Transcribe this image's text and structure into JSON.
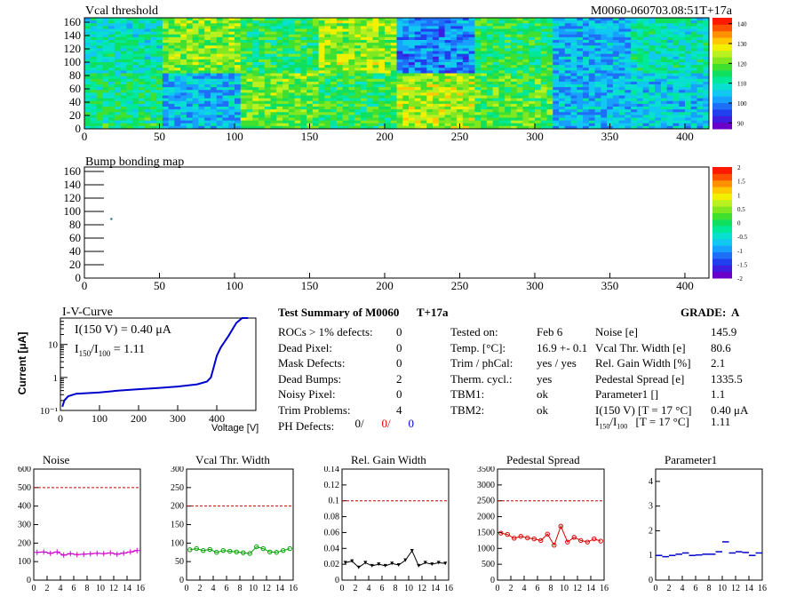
{
  "header": {
    "map_title": "Vcal threshold",
    "module_id": "M0060-060703.08:51T+17a",
    "bump_title": "Bump bonding map"
  },
  "maps": {
    "x_ticks": [
      0,
      50,
      100,
      150,
      200,
      250,
      300,
      350,
      400
    ],
    "y_ticks": [
      0,
      20,
      40,
      60,
      80,
      100,
      120,
      140,
      160
    ],
    "xlim": [
      0,
      416
    ],
    "ylim": [
      0,
      160
    ],
    "threshold_palette": {
      "ticks": [
        90,
        100,
        110,
        120,
        130,
        140
      ],
      "range": [
        87,
        143
      ]
    },
    "bump_palette": {
      "ticks": [
        "2",
        "1.5",
        "1",
        "0.5",
        "0",
        "-0.5",
        "-1",
        "-1.5",
        "-2"
      ]
    },
    "roc_levels_top": [
      110,
      121,
      115,
      123,
      100,
      115,
      104,
      110
    ],
    "roc_levels_bottom": [
      113,
      104,
      120,
      116,
      124,
      118,
      104,
      106
    ],
    "bump_point": {
      "x": 15,
      "y": 90
    }
  },
  "iv": {
    "title": "I-V-Curve",
    "ylabel": "Current [μA]",
    "xlabel": "Voltage [V]",
    "annotation_main": "I(150 V) = 0.40 μA",
    "ratio_prefix": "I",
    "ratio_sub1": "150",
    "ratio_sub2": "100",
    "ratio_value": "= 1.11",
    "x_ticks": [
      0,
      100,
      200,
      300,
      400
    ],
    "y_ticks": [
      "10⁻¹",
      "1",
      "10"
    ],
    "points": [
      [
        5,
        0.13
      ],
      [
        10,
        0.2
      ],
      [
        20,
        0.27
      ],
      [
        40,
        0.32
      ],
      [
        100,
        0.35
      ],
      [
        150,
        0.4
      ],
      [
        200,
        0.44
      ],
      [
        250,
        0.48
      ],
      [
        300,
        0.53
      ],
      [
        350,
        0.62
      ],
      [
        375,
        0.75
      ],
      [
        385,
        1.0
      ],
      [
        393,
        2.2
      ],
      [
        400,
        4.5
      ],
      [
        410,
        8
      ],
      [
        430,
        18
      ],
      [
        450,
        45
      ],
      [
        465,
        90
      ],
      [
        480,
        170
      ]
    ]
  },
  "summary": {
    "title": "Test Summary of M0060",
    "tag": "T+17a",
    "grade": "GRADE:  A",
    "left_rows": [
      {
        "label": "ROCs > 1% defects:",
        "value": "0"
      },
      {
        "label": "Dead Pixel:",
        "value": "0"
      },
      {
        "label": "Mask Defects:",
        "value": "0"
      },
      {
        "label": "Dead Bumps:",
        "value": "2"
      },
      {
        "label": "Noisy Pixel:",
        "value": "0"
      },
      {
        "label": "Trim Problems:",
        "value": "4"
      }
    ],
    "ph_label": "PH Defects:",
    "ph_values": [
      "0/",
      "0/",
      "0"
    ],
    "ph_colors": [
      "#000000",
      "#e00000",
      "#0000cc"
    ],
    "mid_rows": [
      {
        "label": "Tested on:",
        "value": "Feb 6"
      },
      {
        "label": "Temp. [°C]:",
        "value": "16.9 +- 0.1"
      },
      {
        "label": "Trim / phCal:",
        "value": "yes / yes"
      },
      {
        "label": "Therm. cycl.:",
        "value": "yes"
      },
      {
        "label": "TBM1:",
        "value": "ok"
      },
      {
        "label": "TBM2:",
        "value": "ok"
      }
    ],
    "right_rows": [
      {
        "label": "Noise [e]",
        "value": "145.9"
      },
      {
        "label": "Vcal Thr. Width [e]",
        "value": "80.6"
      },
      {
        "label": "Rel. Gain Width [%]",
        "value": "2.1"
      },
      {
        "label": "Pedestal Spread [e]",
        "value": "1335.5"
      },
      {
        "label": "Parameter1 []",
        "value": "1.1"
      },
      {
        "label": "I(150 V) [T = 17 °C]",
        "value": "0.40 μA"
      }
    ],
    "ratio_row": {
      "sub1": "150",
      "sub2": "100",
      "cond": "[T = 17 °C]",
      "value": "1.11"
    }
  },
  "chart_data": [
    {
      "type": "line",
      "title": "Noise",
      "color": "#cc00cc",
      "x": [
        0,
        1,
        2,
        3,
        4,
        5,
        6,
        7,
        8,
        9,
        10,
        11,
        12,
        13,
        14,
        15
      ],
      "values": [
        150,
        152,
        145,
        152,
        135,
        143,
        138,
        140,
        142,
        145,
        143,
        147,
        140,
        146,
        152,
        160
      ],
      "ylim": [
        0,
        600
      ],
      "yticks": [
        0,
        100,
        200,
        300,
        400,
        500,
        600
      ],
      "threshold": 500
    },
    {
      "type": "line",
      "title": "Vcal Thr. Width",
      "color": "#00a000",
      "x": [
        0,
        1,
        2,
        3,
        4,
        5,
        6,
        7,
        8,
        9,
        10,
        11,
        12,
        13,
        14,
        15
      ],
      "values": [
        82,
        85,
        80,
        83,
        75,
        80,
        78,
        76,
        74,
        72,
        90,
        85,
        76,
        75,
        80,
        85
      ],
      "ylim": [
        0,
        300
      ],
      "yticks": [
        0,
        50,
        100,
        150,
        200,
        250,
        300
      ],
      "threshold": 200
    },
    {
      "type": "line",
      "title": "Rel. Gain Width",
      "color": "#000000",
      "x": [
        0,
        1,
        2,
        3,
        4,
        5,
        6,
        7,
        8,
        9,
        10,
        11,
        12,
        13,
        14,
        15
      ],
      "values": [
        0.022,
        0.024,
        0.016,
        0.022,
        0.018,
        0.02,
        0.018,
        0.021,
        0.019,
        0.025,
        0.037,
        0.018,
        0.022,
        0.02,
        0.022,
        0.021
      ],
      "ylim": [
        0,
        0.14
      ],
      "yticks": [
        0,
        0.02,
        0.04,
        0.06,
        0.08,
        0.1,
        0.12,
        0.14
      ],
      "threshold": 0.1
    },
    {
      "type": "line",
      "title": "Pedestal Spread",
      "color": "#dd0000",
      "x": [
        0,
        1,
        2,
        3,
        4,
        5,
        6,
        7,
        8,
        9,
        10,
        11,
        12,
        13,
        14,
        15
      ],
      "values": [
        1480,
        1440,
        1320,
        1380,
        1330,
        1300,
        1250,
        1450,
        1100,
        1700,
        1200,
        1350,
        1250,
        1200,
        1300,
        1230
      ],
      "ylim": [
        0,
        3500
      ],
      "yticks": [
        0,
        500,
        1000,
        1500,
        2000,
        2500,
        3000,
        3500
      ],
      "threshold": 2500
    },
    {
      "type": "line",
      "title": "Parameter1",
      "color": "#0000cc",
      "x": [
        0,
        1,
        2,
        3,
        4,
        5,
        6,
        7,
        8,
        9,
        10,
        11,
        12,
        13,
        14,
        15
      ],
      "values": [
        1.0,
        0.95,
        1.0,
        1.05,
        1.1,
        1.0,
        1.02,
        1.05,
        1.05,
        1.15,
        1.55,
        1.1,
        1.15,
        1.12,
        1.0,
        1.1
      ],
      "ylim": [
        0,
        4.5
      ],
      "yticks": [
        0,
        1,
        2,
        3,
        4
      ],
      "threshold": null
    }
  ]
}
